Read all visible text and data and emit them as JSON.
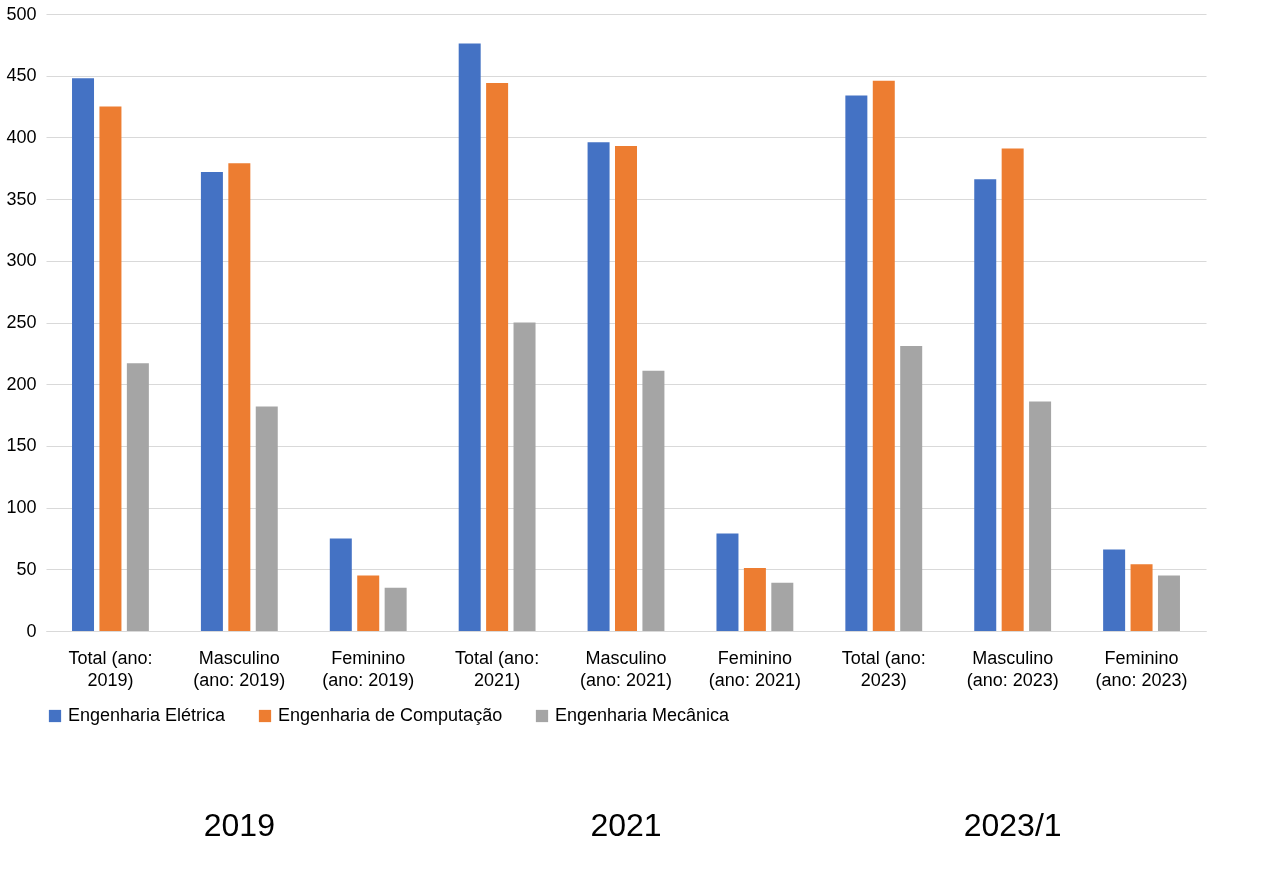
{
  "chart_data": {
    "type": "bar",
    "categories": [
      "Total (ano: 2019)",
      "Masculino (ano: 2019)",
      "Feminino (ano: 2019)",
      "Total (ano: 2021)",
      "Masculino (ano: 2021)",
      "Feminino (ano: 2021)",
      "Total (ano: 2023)",
      "Masculino (ano: 2023)",
      "Feminino (ano: 2023)"
    ],
    "series": [
      {
        "name": "Engenharia Elétrica",
        "color": "#4472c4",
        "values": [
          448,
          372,
          75,
          476,
          396,
          79,
          434,
          366,
          66
        ]
      },
      {
        "name": "Engenharia de Computação",
        "color": "#ed7d31",
        "values": [
          425,
          379,
          45,
          444,
          393,
          51,
          446,
          391,
          54
        ]
      },
      {
        "name": "Engenharia Mecânica",
        "color": "#a5a5a5",
        "values": [
          217,
          182,
          35,
          250,
          211,
          39,
          231,
          186,
          45
        ]
      }
    ],
    "ylim": [
      0,
      500
    ],
    "yticks": [
      0,
      50,
      100,
      150,
      200,
      250,
      300,
      350,
      400,
      450,
      500
    ],
    "grid": "y",
    "legend": "bottom",
    "annotations": [
      "2019",
      "2021",
      "2023/1"
    ]
  }
}
